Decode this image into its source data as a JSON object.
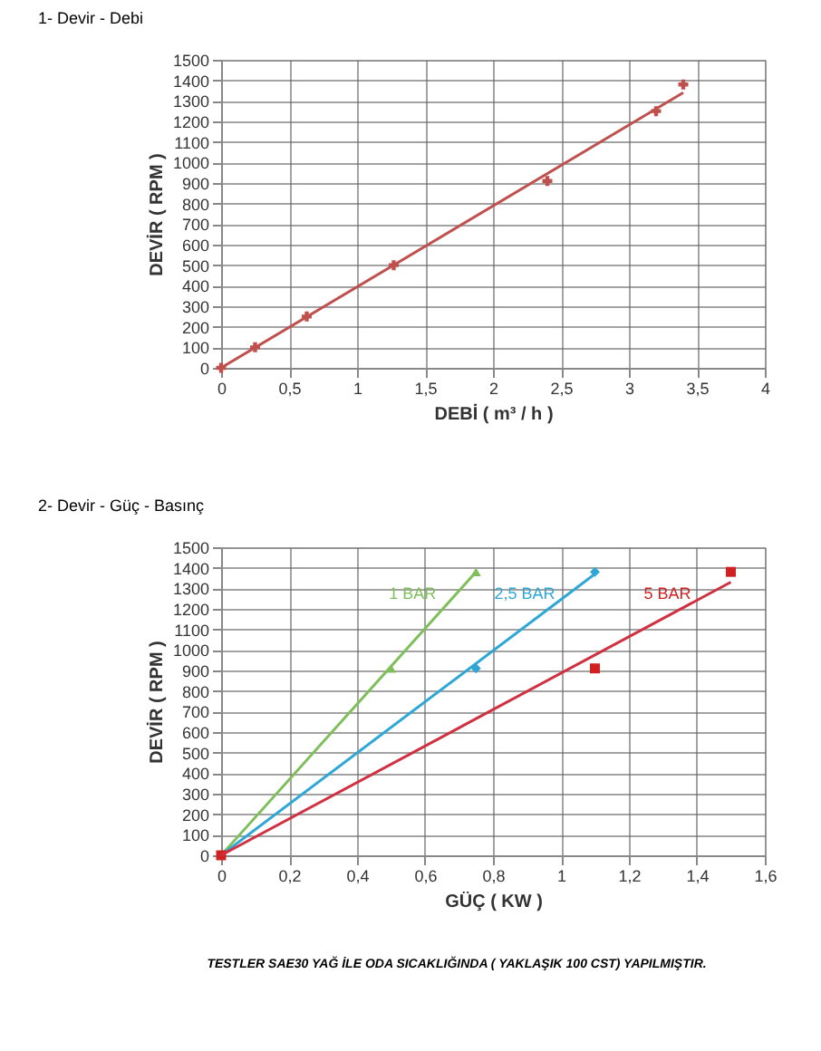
{
  "chart_data": [
    {
      "type": "scatter",
      "title": "1- Devir - Debi",
      "xlabel": "DEBİ ( m³ / h )",
      "ylabel": "DEVİR ( RPM )",
      "xlim": [
        0,
        4
      ],
      "ylim": [
        0,
        1500
      ],
      "xticks": [
        0,
        {
          "value": 0.5,
          "label": "0,5"
        },
        1,
        {
          "value": 1.5,
          "label": "1,5"
        },
        2,
        {
          "value": 2.5,
          "label": "2,5"
        },
        3,
        {
          "value": 3.5,
          "label": "3,5"
        },
        4
      ],
      "yticks": [
        0,
        100,
        200,
        300,
        400,
        500,
        600,
        700,
        800,
        900,
        1000,
        1100,
        1200,
        1300,
        1400,
        1500
      ],
      "grid": true,
      "series": [
        {
          "marker": "cross",
          "color": "#c0504d",
          "x": [
            0,
            0.25,
            0.63,
            1.27,
            2.4,
            3.2,
            3.4
          ],
          "values": [
            0,
            100,
            250,
            500,
            910,
            1250,
            1380
          ]
        },
        {
          "type": "line",
          "color": "#c0504d",
          "x": [
            0,
            3.4
          ],
          "values": [
            0,
            1340
          ]
        }
      ]
    },
    {
      "type": "scatter",
      "title": "2- Devir - Güç - Basınç",
      "xlabel": "GÜÇ ( KW )",
      "ylabel": "DEVİR ( RPM )",
      "xlim": [
        0,
        1.6
      ],
      "ylim": [
        0,
        1500
      ],
      "xticks": [
        0,
        {
          "value": 0.2,
          "label": "0,2"
        },
        {
          "value": 0.4,
          "label": "0,4"
        },
        {
          "value": 0.6,
          "label": "0,6"
        },
        {
          "value": 0.8,
          "label": "0,8"
        },
        1,
        {
          "value": 1.2,
          "label": "1,2"
        },
        {
          "value": 1.4,
          "label": "1,4"
        },
        {
          "value": 1.6,
          "label": "1,6"
        }
      ],
      "yticks": [
        0,
        100,
        200,
        300,
        400,
        500,
        600,
        700,
        800,
        900,
        1000,
        1100,
        1200,
        1300,
        1400,
        1500
      ],
      "grid": true,
      "annotations": [
        "TESTLER SAE30 YAĞ İLE ODA SICAKLIĞINDA ( YAKLAŞIK 100 CST) YAPILMIŞTIR."
      ],
      "series": [
        {
          "name": "1 BAR",
          "marker": "triangle",
          "color": "#7fbf5a",
          "x": [
            0.5,
            0.75
          ],
          "values": [
            910,
            1380
          ]
        },
        {
          "type": "line",
          "color": "#7fbf5a",
          "x": [
            0,
            0.75
          ],
          "values": [
            0,
            1380
          ]
        },
        {
          "name": "2,5 BAR",
          "marker": "diamond",
          "color": "#2ea7d6",
          "x": [
            0.75,
            1.1
          ],
          "values": [
            910,
            1380
          ]
        },
        {
          "type": "line",
          "color": "#2ea7d6",
          "x": [
            0,
            1.1
          ],
          "values": [
            0,
            1370
          ]
        },
        {
          "name": "5 BAR",
          "marker": "square",
          "color": "#d02020",
          "x": [
            0,
            1.1,
            1.5
          ],
          "values": [
            0,
            910,
            1380
          ]
        },
        {
          "type": "line",
          "color": "#d03040",
          "x": [
            0,
            1.5
          ],
          "values": [
            0,
            1330
          ]
        }
      ]
    }
  ]
}
